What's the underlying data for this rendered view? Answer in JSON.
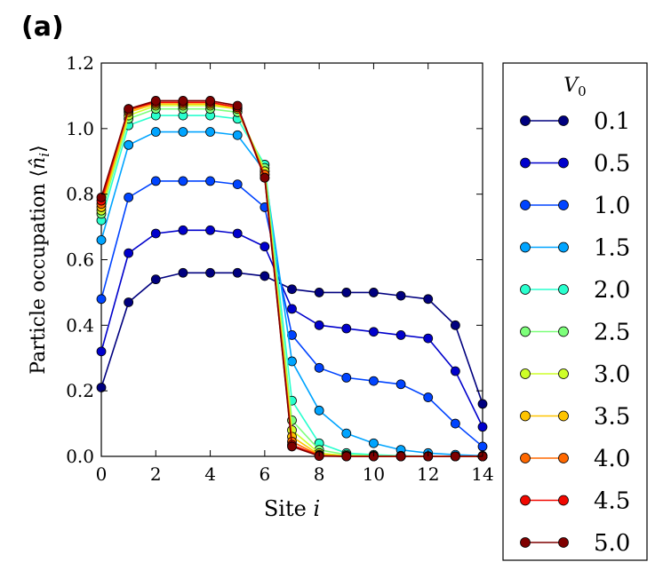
{
  "chart_data": {
    "type": "line",
    "panel_label": "(a)",
    "xlabel": "Site i",
    "ylabel": "Particle occupation ⟨n̂_i⟩",
    "xlim": [
      0,
      14
    ],
    "ylim": [
      0,
      1.2
    ],
    "x": [
      0,
      1,
      2,
      3,
      4,
      5,
      6,
      7,
      8,
      9,
      10,
      11,
      12,
      13,
      14
    ],
    "xticks": [
      "0",
      "2",
      "4",
      "6",
      "8",
      "10",
      "12",
      "14"
    ],
    "yticks": [
      "0.0",
      "0.2",
      "0.4",
      "0.6",
      "0.8",
      "1.0",
      "1.2"
    ],
    "legend_title": "V0",
    "series": [
      {
        "name": "0.1",
        "color": "#00007f",
        "values": [
          0.21,
          0.47,
          0.54,
          0.56,
          0.56,
          0.56,
          0.55,
          0.51,
          0.5,
          0.5,
          0.5,
          0.49,
          0.48,
          0.4,
          0.16
        ]
      },
      {
        "name": "0.5",
        "color": "#0000cc",
        "values": [
          0.32,
          0.62,
          0.68,
          0.69,
          0.69,
          0.68,
          0.64,
          0.45,
          0.4,
          0.39,
          0.38,
          0.37,
          0.36,
          0.26,
          0.09
        ]
      },
      {
        "name": "1.0",
        "color": "#0044ff",
        "values": [
          0.48,
          0.79,
          0.84,
          0.84,
          0.84,
          0.83,
          0.76,
          0.37,
          0.27,
          0.24,
          0.23,
          0.22,
          0.18,
          0.1,
          0.03
        ]
      },
      {
        "name": "1.5",
        "color": "#00a4ff",
        "values": [
          0.66,
          0.95,
          0.99,
          0.99,
          0.99,
          0.98,
          0.87,
          0.29,
          0.14,
          0.07,
          0.04,
          0.02,
          0.01,
          0.005,
          0.002
        ]
      },
      {
        "name": "2.0",
        "color": "#29ffce",
        "values": [
          0.72,
          1.01,
          1.04,
          1.04,
          1.04,
          1.03,
          0.89,
          0.17,
          0.04,
          0.01,
          0.005,
          0.002,
          0.001,
          0,
          0
        ]
      },
      {
        "name": "2.5",
        "color": "#7dff7a",
        "values": [
          0.74,
          1.03,
          1.06,
          1.06,
          1.06,
          1.05,
          0.88,
          0.11,
          0.02,
          0.005,
          0.002,
          0.001,
          0,
          0,
          0
        ]
      },
      {
        "name": "3.0",
        "color": "#ceff29",
        "values": [
          0.75,
          1.04,
          1.07,
          1.07,
          1.07,
          1.06,
          0.87,
          0.08,
          0.01,
          0.002,
          0.001,
          0,
          0,
          0,
          0
        ]
      },
      {
        "name": "3.5",
        "color": "#ffc400",
        "values": [
          0.76,
          1.05,
          1.075,
          1.075,
          1.075,
          1.06,
          0.86,
          0.06,
          0.005,
          0.001,
          0,
          0,
          0,
          0,
          0
        ]
      },
      {
        "name": "4.0",
        "color": "#ff6800",
        "values": [
          0.77,
          1.055,
          1.08,
          1.08,
          1.08,
          1.065,
          0.86,
          0.045,
          0.003,
          0,
          0,
          0,
          0,
          0,
          0
        ]
      },
      {
        "name": "4.5",
        "color": "#f10800",
        "values": [
          0.78,
          1.06,
          1.08,
          1.08,
          1.08,
          1.065,
          0.85,
          0.035,
          0.002,
          0,
          0,
          0,
          0,
          0,
          0
        ]
      },
      {
        "name": "5.0",
        "color": "#7f0000",
        "values": [
          0.79,
          1.06,
          1.085,
          1.085,
          1.085,
          1.07,
          0.85,
          0.03,
          0.001,
          0,
          0,
          0,
          0,
          0,
          0
        ]
      }
    ]
  }
}
